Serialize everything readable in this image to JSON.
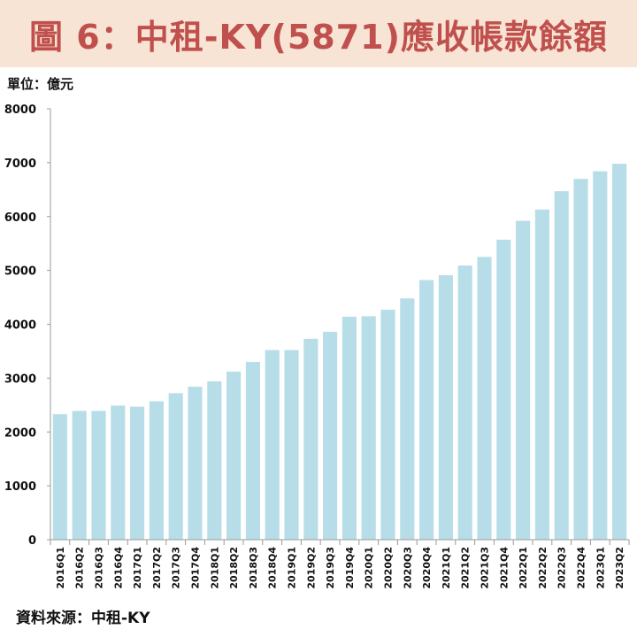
{
  "title": "圖 6：中租-KY(5871)應收帳款餘額",
  "unit": "單位：億元",
  "source": "資料來源：中租-KY",
  "colors": {
    "bar": "#b7dde8",
    "title_bg": "#f8e4d4",
    "title_text": "#c0504d",
    "axis": "#999999"
  },
  "chart_data": {
    "type": "bar",
    "title": "圖 6：中租-KY(5871)應收帳款餘額",
    "xlabel": "",
    "ylabel": "單位：億元",
    "ylim": [
      0,
      8000
    ],
    "yticks": [
      0,
      1000,
      2000,
      3000,
      4000,
      5000,
      6000,
      7000,
      8000
    ],
    "grid": false,
    "categories": [
      "2016Q1",
      "2016Q2",
      "2016Q3",
      "2016Q4",
      "2017Q1",
      "2017Q2",
      "2017Q3",
      "2017Q4",
      "2018Q1",
      "2018Q2",
      "2018Q3",
      "2018Q4",
      "2019Q1",
      "2019Q2",
      "2019Q3",
      "2019Q4",
      "2020Q1",
      "2020Q2",
      "2020Q3",
      "2020Q4",
      "2021Q1",
      "2021Q2",
      "2021Q3",
      "2021Q4",
      "2022Q1",
      "2022Q2",
      "2022Q3",
      "2022Q4",
      "2023Q1",
      "2023Q2"
    ],
    "values": [
      2330,
      2390,
      2390,
      2490,
      2470,
      2570,
      2720,
      2840,
      2940,
      3120,
      3300,
      3520,
      3520,
      3730,
      3860,
      4140,
      4150,
      4270,
      4480,
      4820,
      4910,
      5090,
      5250,
      5570,
      5920,
      6130,
      6470,
      6700,
      6840,
      6980
    ]
  }
}
